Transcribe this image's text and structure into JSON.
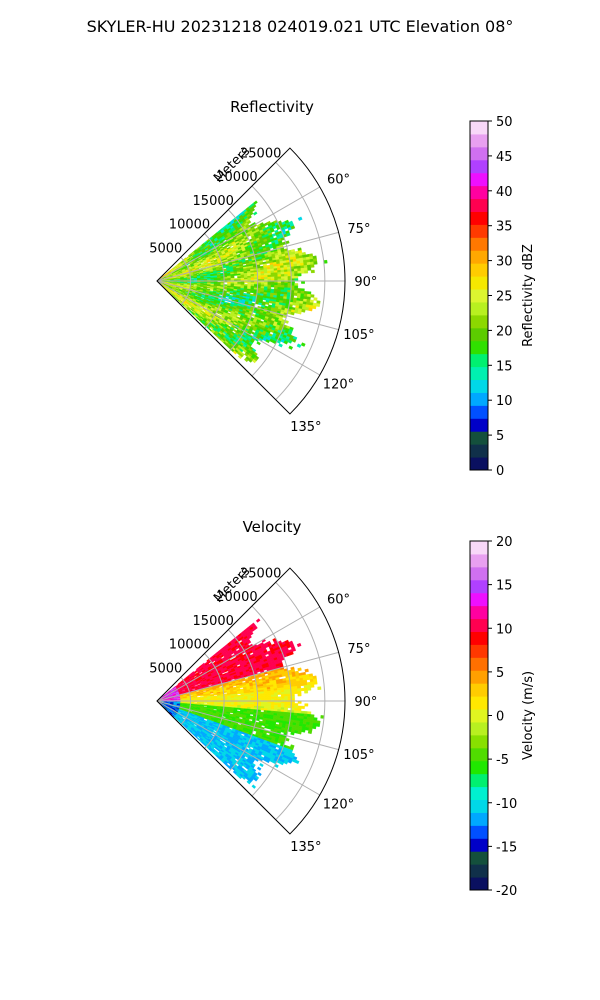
{
  "title": "SKYLER-HU  20231218  024019.021 UTC Elevation 08°",
  "chart_data": [
    {
      "type": "heatmap",
      "projection": "polar-sector",
      "title": "Reflectivity",
      "theta_range_deg": [
        45,
        135
      ],
      "theta_ticks_deg": [
        60,
        75,
        90,
        105,
        120,
        135
      ],
      "theta_tick_labels": [
        "60°",
        "75°",
        "90°",
        "105°",
        "120°",
        "135°"
      ],
      "r_label": "Meters",
      "r_max": 28000,
      "r_ticks": [
        5000,
        10000,
        15000,
        20000,
        25000
      ],
      "r_tick_labels": [
        "5000",
        "10000",
        "15000",
        "20000",
        "25000"
      ],
      "grid": true,
      "data_extent": {
        "theta_deg": [
          51,
          133
        ],
        "r_max_m": 26000
      },
      "colorbar": {
        "label": "Reflectivity dBZ",
        "range": [
          0,
          50
        ],
        "ticks": [
          0,
          5,
          10,
          15,
          20,
          25,
          30,
          35,
          40,
          45,
          50
        ],
        "tick_labels": [
          "0",
          "5",
          "10",
          "15",
          "20",
          "25",
          "30",
          "35",
          "40",
          "45",
          "50"
        ],
        "colors": [
          "#0a1060",
          "#10304a",
          "#14503c",
          "#0000c8",
          "#0050ff",
          "#00a8ff",
          "#00d8e8",
          "#00f0b0",
          "#00f070",
          "#30e000",
          "#5ccc00",
          "#8cd800",
          "#b8f020",
          "#dcf530",
          "#f5e800",
          "#ffcc00",
          "#ffa800",
          "#ff7800",
          "#ff3a00",
          "#ff0000",
          "#ff0050",
          "#ff00a0",
          "#ee10ff",
          "#b040ff",
          "#d070f0",
          "#e8a0f0",
          "#f8d8f8"
        ]
      }
    },
    {
      "type": "heatmap",
      "projection": "polar-sector",
      "title": "Velocity",
      "theta_range_deg": [
        45,
        135
      ],
      "theta_ticks_deg": [
        60,
        75,
        90,
        105,
        120,
        135
      ],
      "theta_tick_labels": [
        "60°",
        "75°",
        "90°",
        "105°",
        "120°",
        "135°"
      ],
      "r_label": "Meters",
      "r_max": 28000,
      "r_ticks": [
        5000,
        10000,
        15000,
        20000,
        25000
      ],
      "r_tick_labels": [
        "5000",
        "10000",
        "15000",
        "20000",
        "25000"
      ],
      "grid": true,
      "data_extent": {
        "theta_deg": [
          51,
          133
        ],
        "r_max_m": 26000
      },
      "colorbar": {
        "label": "Velocity (m/s)",
        "range": [
          -20,
          20
        ],
        "ticks": [
          -20,
          -15,
          -10,
          -5,
          0,
          5,
          10,
          15,
          20
        ],
        "tick_labels": [
          "-20",
          "-15",
          "-10",
          "-5",
          "0",
          "5",
          "10",
          "15",
          "20"
        ],
        "colors": [
          "#0a1060",
          "#10304a",
          "#14503c",
          "#0000c8",
          "#0050ff",
          "#00a8ff",
          "#00d8e8",
          "#00f0d0",
          "#00f070",
          "#20e800",
          "#50dc00",
          "#88e000",
          "#b8f020",
          "#e0f520",
          "#ffe800",
          "#ffcc00",
          "#ffa000",
          "#ff7000",
          "#ff3800",
          "#ff0000",
          "#ff0050",
          "#ff00a0",
          "#ee10ff",
          "#b040ff",
          "#d070f0",
          "#e8a0f0",
          "#f8d8f8"
        ]
      }
    }
  ]
}
